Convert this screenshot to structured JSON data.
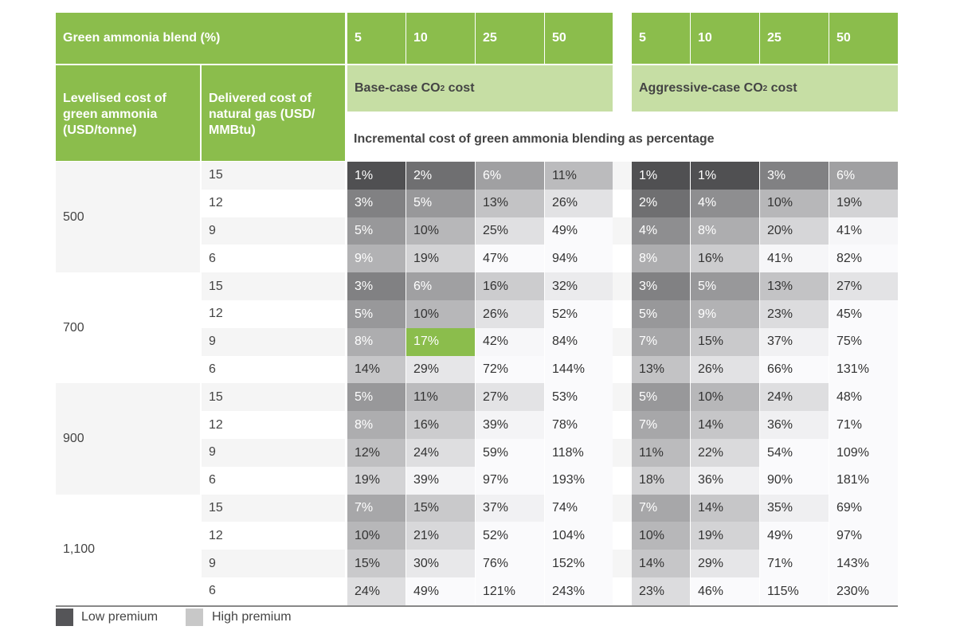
{
  "header": {
    "blend_label": "Green ammonia blend (%)",
    "blend_values": [
      "5",
      "10",
      "25",
      "50"
    ],
    "lcoa_label": "Levelised cost of green ammonia (USD/tonne)",
    "gas_label": "Delivered cost of natural gas (USD/ MMBtu)",
    "base_case_prefix": "Base-case CO",
    "aggressive_case_prefix": "Aggressive-case CO",
    "co2_sub": "2",
    "co2_suffix": " cost",
    "incremental_label": "Incremental cost of green ammonia blending as percentage"
  },
  "legend": {
    "low_label": "Low premium",
    "high_label": "High premium"
  },
  "colors": {
    "accent_green": "#8bbd4c",
    "light_green": "#c6dea4",
    "highlight": "#8bbd4c",
    "low": "#555558",
    "high": "#c8c8c8"
  },
  "chart_data": {
    "type": "table",
    "columns": [
      "5",
      "10",
      "25",
      "50"
    ],
    "row_groups": [
      {
        "lcoa": "500",
        "gas_costs": [
          "15",
          "12",
          "9",
          "6"
        ],
        "base": [
          [
            "1%",
            "2%",
            "6%",
            "11%"
          ],
          [
            "3%",
            "5%",
            "13%",
            "26%"
          ],
          [
            "5%",
            "10%",
            "25%",
            "49%"
          ],
          [
            "9%",
            "19%",
            "47%",
            "94%"
          ]
        ],
        "aggressive": [
          [
            "1%",
            "1%",
            "3%",
            "6%"
          ],
          [
            "2%",
            "4%",
            "10%",
            "19%"
          ],
          [
            "4%",
            "8%",
            "20%",
            "41%"
          ],
          [
            "8%",
            "16%",
            "41%",
            "82%"
          ]
        ]
      },
      {
        "lcoa": "700",
        "gas_costs": [
          "15",
          "12",
          "9",
          "6"
        ],
        "base": [
          [
            "3%",
            "6%",
            "16%",
            "32%"
          ],
          [
            "5%",
            "10%",
            "26%",
            "52%"
          ],
          [
            "8%",
            "17%",
            "42%",
            "84%"
          ],
          [
            "14%",
            "29%",
            "72%",
            "144%"
          ]
        ],
        "aggressive": [
          [
            "3%",
            "5%",
            "13%",
            "27%"
          ],
          [
            "5%",
            "9%",
            "23%",
            "45%"
          ],
          [
            "7%",
            "15%",
            "37%",
            "75%"
          ],
          [
            "13%",
            "26%",
            "66%",
            "131%"
          ]
        ]
      },
      {
        "lcoa": "900",
        "gas_costs": [
          "15",
          "12",
          "9",
          "6"
        ],
        "base": [
          [
            "5%",
            "11%",
            "27%",
            "53%"
          ],
          [
            "8%",
            "16%",
            "39%",
            "78%"
          ],
          [
            "12%",
            "24%",
            "59%",
            "118%"
          ],
          [
            "19%",
            "39%",
            "97%",
            "193%"
          ]
        ],
        "aggressive": [
          [
            "5%",
            "10%",
            "24%",
            "48%"
          ],
          [
            "7%",
            "14%",
            "36%",
            "71%"
          ],
          [
            "11%",
            "22%",
            "54%",
            "109%"
          ],
          [
            "18%",
            "36%",
            "90%",
            "181%"
          ]
        ]
      },
      {
        "lcoa": "1,100",
        "gas_costs": [
          "15",
          "12",
          "9",
          "6"
        ],
        "base": [
          [
            "7%",
            "15%",
            "37%",
            "74%"
          ],
          [
            "10%",
            "21%",
            "52%",
            "104%"
          ],
          [
            "15%",
            "30%",
            "76%",
            "152%"
          ],
          [
            "24%",
            "49%",
            "121%",
            "243%"
          ]
        ],
        "aggressive": [
          [
            "7%",
            "14%",
            "35%",
            "69%"
          ],
          [
            "10%",
            "19%",
            "49%",
            "97%"
          ],
          [
            "14%",
            "29%",
            "71%",
            "143%"
          ],
          [
            "23%",
            "46%",
            "115%",
            "230%"
          ]
        ]
      }
    ],
    "highlighted_cell": {
      "lcoa": "700",
      "gas_cost": "9",
      "case": "base",
      "blend": "10",
      "value": "17%"
    }
  }
}
